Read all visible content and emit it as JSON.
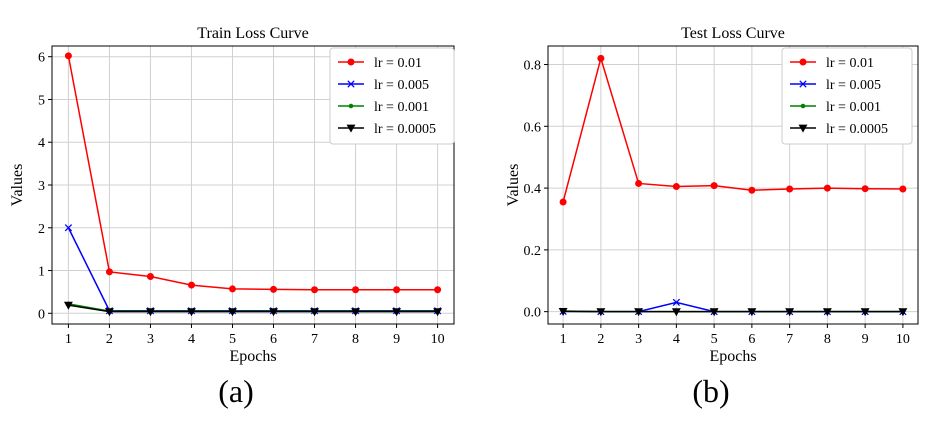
{
  "chart_data": [
    {
      "type": "line",
      "title": "Train Loss Curve",
      "xlabel": "Epochs",
      "ylabel": "Values",
      "caption": "(a)",
      "x": [
        1,
        2,
        3,
        4,
        5,
        6,
        7,
        8,
        9,
        10
      ],
      "xlim": [
        0.6,
        10.4
      ],
      "ylim": [
        -0.25,
        6.25
      ],
      "xticks": [
        1,
        2,
        3,
        4,
        5,
        6,
        7,
        8,
        9,
        10
      ],
      "yticks": [
        0,
        1,
        2,
        3,
        4,
        5,
        6
      ],
      "grid": true,
      "legend_position": "top-right",
      "series": [
        {
          "name": "lr = 0.01",
          "color": "#ff0000",
          "marker": "circle",
          "values": [
            6.02,
            0.97,
            0.86,
            0.66,
            0.57,
            0.56,
            0.55,
            0.55,
            0.55,
            0.55
          ]
        },
        {
          "name": "lr = 0.005",
          "color": "#0000ff",
          "marker": "x",
          "values": [
            2.0,
            0.06,
            0.06,
            0.06,
            0.06,
            0.06,
            0.06,
            0.06,
            0.06,
            0.06
          ]
        },
        {
          "name": "lr = 0.001",
          "color": "#008000",
          "marker": "dot",
          "values": [
            0.22,
            0.05,
            0.05,
            0.05,
            0.05,
            0.05,
            0.05,
            0.05,
            0.05,
            0.05
          ]
        },
        {
          "name": "lr = 0.0005",
          "color": "#000000",
          "marker": "triangle-down",
          "values": [
            0.19,
            0.04,
            0.04,
            0.04,
            0.04,
            0.04,
            0.04,
            0.04,
            0.04,
            0.04
          ]
        }
      ]
    },
    {
      "type": "line",
      "title": "Test Loss Curve",
      "xlabel": "Epochs",
      "ylabel": "Values",
      "caption": "(b)",
      "x": [
        1,
        2,
        3,
        4,
        5,
        6,
        7,
        8,
        9,
        10
      ],
      "xlim": [
        0.6,
        10.4
      ],
      "ylim": [
        -0.04,
        0.86
      ],
      "xticks": [
        1,
        2,
        3,
        4,
        5,
        6,
        7,
        8,
        9,
        10
      ],
      "yticks": [
        0.0,
        0.2,
        0.4,
        0.6,
        0.8
      ],
      "ytick_labels": [
        "0.0",
        "0.2",
        "0.4",
        "0.6",
        "0.8"
      ],
      "grid": true,
      "legend_position": "top-right",
      "series": [
        {
          "name": "lr = 0.01",
          "color": "#ff0000",
          "marker": "circle",
          "values": [
            0.355,
            0.82,
            0.415,
            0.405,
            0.408,
            0.393,
            0.397,
            0.4,
            0.398,
            0.397
          ]
        },
        {
          "name": "lr = 0.005",
          "color": "#0000ff",
          "marker": "x",
          "values": [
            0.001,
            0.0,
            0.0,
            0.03,
            0.0,
            0.0,
            0.0,
            0.0,
            0.0,
            0.0
          ]
        },
        {
          "name": "lr = 0.001",
          "color": "#008000",
          "marker": "dot",
          "values": [
            0.002,
            0.0,
            0.0,
            0.0,
            0.0,
            0.0,
            0.0,
            0.0,
            0.0,
            0.0
          ]
        },
        {
          "name": "lr = 0.0005",
          "color": "#000000",
          "marker": "triangle-down",
          "values": [
            0.001,
            0.0,
            0.0,
            0.0,
            0.0,
            0.0,
            0.0,
            0.0,
            0.0,
            0.0
          ]
        }
      ]
    }
  ]
}
